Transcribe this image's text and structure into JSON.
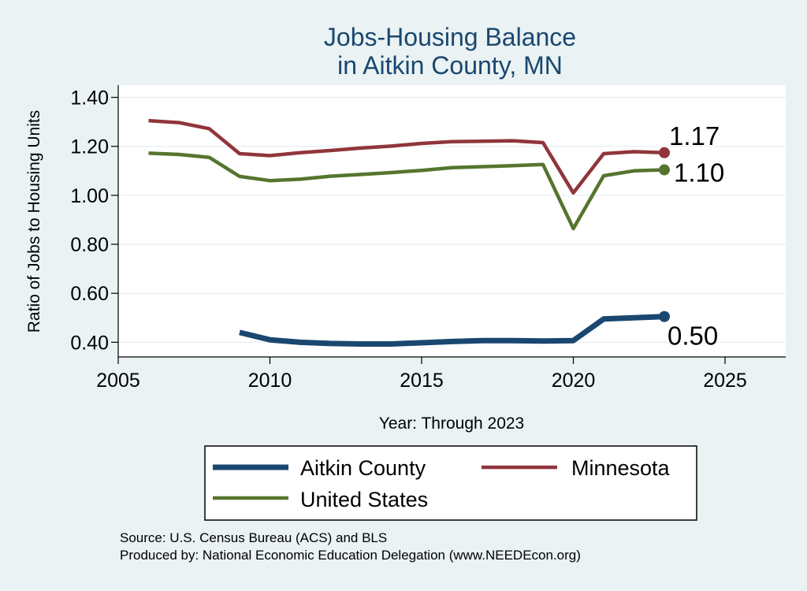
{
  "chart_data": {
    "type": "line",
    "title": [
      "Jobs-Housing Balance",
      "in Aitkin County, MN"
    ],
    "xlabel": "Year: Through 2023",
    "ylabel": "Ratio of Jobs to Housing Units",
    "xlim": [
      2005,
      2027
    ],
    "ylim": [
      0.34,
      1.45
    ],
    "xticks": [
      2005,
      2010,
      2015,
      2020,
      2025
    ],
    "yticks": [
      0.4,
      0.6,
      0.8,
      1.0,
      1.2,
      1.4
    ],
    "ytick_labels": [
      "0.40",
      "0.60",
      "0.80",
      "1.00",
      "1.20",
      "1.40"
    ],
    "grid": "horizontal",
    "legend_position": "bottom",
    "series": [
      {
        "name": "Aitkin County",
        "color": "#1a476f",
        "x": [
          2009,
          2010,
          2011,
          2012,
          2013,
          2014,
          2015,
          2016,
          2017,
          2018,
          2019,
          2020,
          2021,
          2022,
          2023
        ],
        "values": [
          0.44,
          0.41,
          0.4,
          0.395,
          0.393,
          0.393,
          0.398,
          0.403,
          0.407,
          0.407,
          0.405,
          0.407,
          0.495,
          0.5,
          0.505
        ],
        "end_label": "0.50"
      },
      {
        "name": "Minnesota",
        "color": "#90353b",
        "x": [
          2006,
          2007,
          2008,
          2009,
          2010,
          2011,
          2012,
          2013,
          2014,
          2015,
          2016,
          2017,
          2018,
          2019,
          2020,
          2021,
          2022,
          2023
        ],
        "values": [
          1.305,
          1.297,
          1.272,
          1.17,
          1.162,
          1.174,
          1.183,
          1.193,
          1.201,
          1.212,
          1.219,
          1.221,
          1.223,
          1.215,
          1.01,
          1.17,
          1.178,
          1.174
        ],
        "end_label": "1.17"
      },
      {
        "name": "United States",
        "color": "#55752f",
        "x": [
          2006,
          2007,
          2008,
          2009,
          2010,
          2011,
          2012,
          2013,
          2014,
          2015,
          2016,
          2017,
          2018,
          2019,
          2020,
          2021,
          2022,
          2023
        ],
        "values": [
          1.172,
          1.167,
          1.155,
          1.077,
          1.06,
          1.066,
          1.078,
          1.085,
          1.093,
          1.102,
          1.113,
          1.117,
          1.121,
          1.126,
          0.864,
          1.08,
          1.1,
          1.104
        ],
        "end_label": "1.10"
      }
    ],
    "notes": [
      "Source: U.S. Census Bureau (ACS) and BLS",
      "Produced by: National Economic Education Delegation (www.NEEDEcon.org)"
    ]
  }
}
